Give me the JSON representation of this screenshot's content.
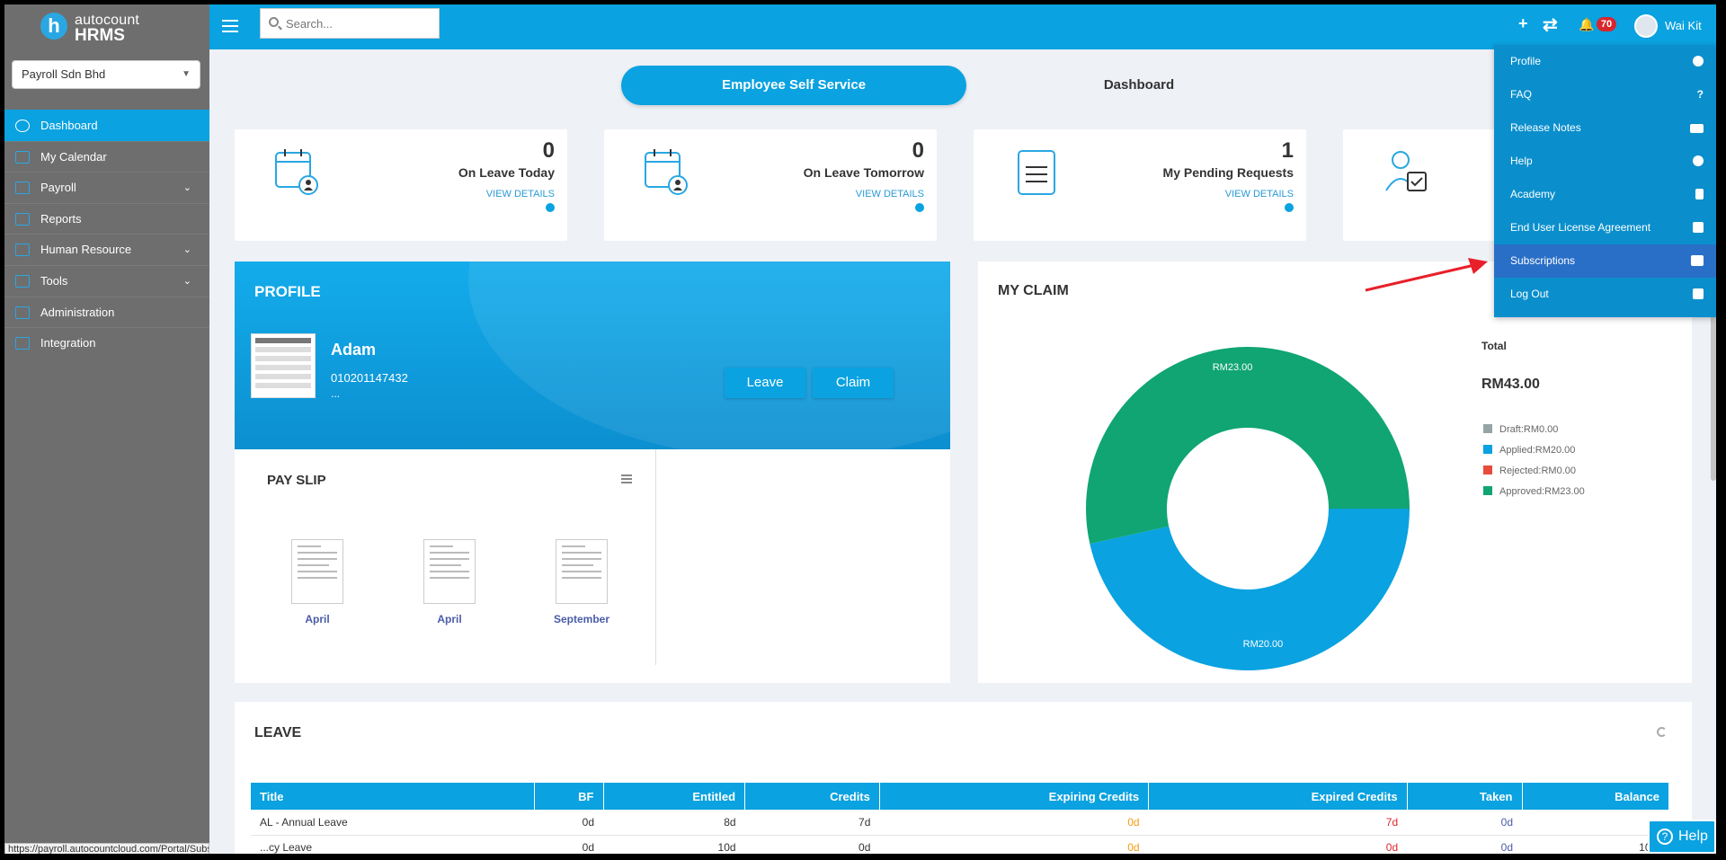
{
  "brand": {
    "mark": "h",
    "line1": "autocount",
    "line2": "HRMS"
  },
  "company": {
    "selected": "Payroll Sdn Bhd"
  },
  "sidebar": {
    "items": [
      {
        "label": "Dashboard",
        "icon": "dashboard-icon",
        "active": true
      },
      {
        "label": "My Calendar",
        "icon": "calendar-icon"
      },
      {
        "label": "Payroll",
        "icon": "payroll-icon",
        "has_children": true
      },
      {
        "label": "Reports",
        "icon": "reports-icon"
      },
      {
        "label": "Human Resource",
        "icon": "human-resource-icon",
        "has_children": true
      },
      {
        "label": "Tools",
        "icon": "tools-icon",
        "has_children": true
      },
      {
        "label": "Administration",
        "icon": "administration-icon"
      },
      {
        "label": "Integration",
        "icon": "integration-icon"
      }
    ]
  },
  "topbar": {
    "search_placeholder": "Search...",
    "add": "+",
    "sync": "⇄",
    "bell": "🔔",
    "notification_count": "70",
    "user_name": "Wai Kit",
    "user_caret": "⌄"
  },
  "tabs": {
    "employee_self_service": "Employee Self Service",
    "dashboard": "Dashboard"
  },
  "stats": [
    {
      "value": "0",
      "label": "On Leave Today",
      "link": "VIEW DETAILS"
    },
    {
      "value": "0",
      "label": "On Leave Tomorrow",
      "link": "VIEW DETAILS"
    },
    {
      "value": "1",
      "label": "My Pending Requests",
      "link": "VIEW DETAILS"
    }
  ],
  "profile": {
    "title": "PROFILE",
    "name": "Adam",
    "ic": "010201147432",
    "more": "...",
    "leave_button": "Leave",
    "claim_button": "Claim"
  },
  "payslip": {
    "title": "PAY SLIP",
    "items": [
      {
        "month": "April"
      },
      {
        "month": "April"
      },
      {
        "month": "September"
      }
    ]
  },
  "claim": {
    "title": "MY CLAIM",
    "total_label": "Total",
    "total_value": "RM43.00",
    "legend": [
      {
        "label": "Draft:RM0.00",
        "color": "#95a5a6"
      },
      {
        "label": "Applied:RM20.00",
        "color": "#0aa2e0"
      },
      {
        "label": "Rejected:RM0.00",
        "color": "#e74c3c"
      },
      {
        "label": "Approved:RM23.00",
        "color": "#10a572"
      }
    ]
  },
  "chart_data": {
    "type": "pie",
    "categories": [
      "Draft",
      "Applied",
      "Rejected",
      "Approved"
    ],
    "values": [
      0,
      20,
      0,
      23
    ],
    "slice_labels": [
      "",
      "RM20.00",
      "",
      "RM23.00"
    ],
    "colors": [
      "#95a5a6",
      "#0aa2e0",
      "#e74c3c",
      "#10a572"
    ],
    "title": "MY CLAIM",
    "donut": true
  },
  "leave": {
    "title": "LEAVE",
    "columns": [
      "Title",
      "BF",
      "Entitled",
      "Credits",
      "Expiring Credits",
      "Expired Credits",
      "Taken",
      "Balance"
    ],
    "rows": [
      [
        "AL - Annual Leave",
        "0d",
        "8d",
        "7d",
        "0d",
        "7d",
        "0d",
        ""
      ],
      [
        "...cy Leave",
        "0d",
        "10d",
        "0d",
        "0d",
        "0d",
        "0d",
        "10..."
      ]
    ]
  },
  "user_menu": {
    "items": [
      {
        "label": "Profile",
        "icon": "user-circle-icon"
      },
      {
        "label": "FAQ",
        "icon": "question-icon"
      },
      {
        "label": "Release Notes",
        "icon": "release-notes-icon"
      },
      {
        "label": "Help",
        "icon": "help-circle-icon"
      },
      {
        "label": "Academy",
        "icon": "bookmark-icon"
      },
      {
        "label": "End User License Agreement",
        "icon": "download-icon"
      },
      {
        "label": "Subscriptions",
        "icon": "book-icon",
        "highlighted": true
      },
      {
        "label": "Log Out",
        "icon": "logout-icon"
      }
    ]
  },
  "help_button": {
    "label": "Help",
    "icon": "?"
  },
  "status_url": "https://payroll.autocountcloud.com/Portal/SubscriptionList?stab=1"
}
